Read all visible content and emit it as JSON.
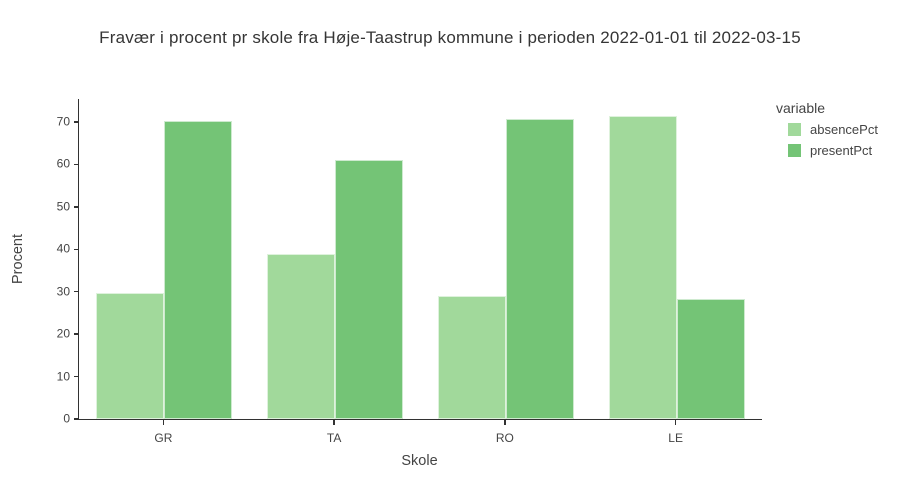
{
  "title": "Fravær i procent pr skole fra Høje-Taastrup kommune i perioden 2022-01-01 til 2022-03-15",
  "chart_data": {
    "type": "bar",
    "grouped": true,
    "categories": [
      "GR",
      "TA",
      "RO",
      "LE"
    ],
    "series": [
      {
        "name": "absencePct",
        "color": "#a1d99b",
        "values": [
          29.6,
          38.8,
          28.9,
          71.5
        ]
      },
      {
        "name": "presentPct",
        "color": "#74c476",
        "values": [
          70.2,
          61.0,
          70.8,
          28.2
        ]
      }
    ],
    "xlabel": "Skole",
    "ylabel": "Procent",
    "ylim": [
      0,
      75.4
    ],
    "yticks": [
      0,
      10,
      20,
      30,
      40,
      50,
      60,
      70
    ],
    "grid": false,
    "legend": {
      "title": "variable",
      "position": "right",
      "items": [
        "absencePct",
        "presentPct"
      ]
    }
  },
  "colors": {
    "axis_line": "#323232",
    "tick_text": "#444444",
    "title_text": "#353535",
    "background": "#ffffff"
  }
}
